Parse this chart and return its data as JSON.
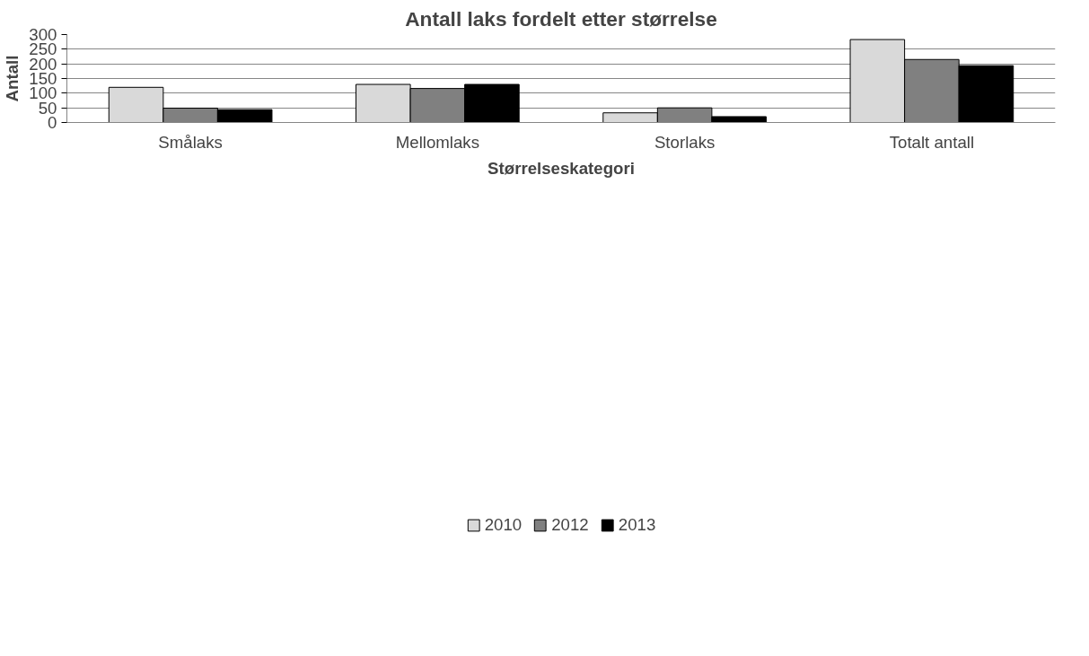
{
  "chart_data": {
    "type": "bar",
    "title": "Antall laks fordelt etter størrelse",
    "xlabel": "Størrelseskategori",
    "ylabel": "Antall",
    "categories": [
      "Smålaks",
      "Mellomlaks",
      "Storlaks",
      "Totalt antall"
    ],
    "series": [
      {
        "name": "2010",
        "color": "#d9d9d9",
        "values": [
          120,
          130,
          33,
          283
        ]
      },
      {
        "name": "2012",
        "color": "#808080",
        "values": [
          49,
          116,
          50,
          215
        ]
      },
      {
        "name": "2013",
        "color": "#000000",
        "values": [
          44,
          130,
          20,
          194
        ]
      }
    ],
    "ylim": [
      0,
      300
    ],
    "yticks": [
      0,
      50,
      100,
      150,
      200,
      250,
      300
    ],
    "grid": "y",
    "legend": "bottom"
  }
}
